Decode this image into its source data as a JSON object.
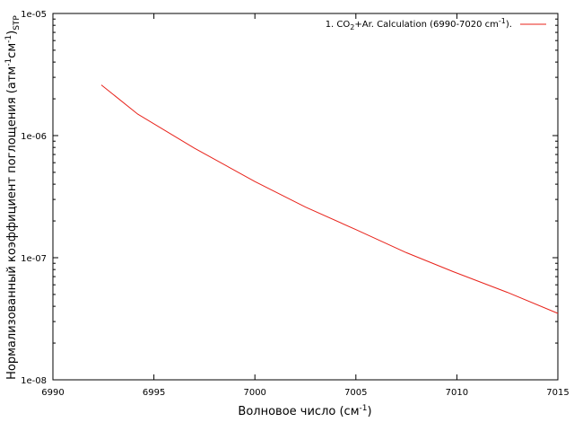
{
  "chart_data": {
    "type": "line",
    "xlabel": {
      "main": "Волновое число (см",
      "sup": "-1",
      "close": ")"
    },
    "ylabel": {
      "a": "Нормализованный коэффициент поглощения (атм",
      "sup1": "-1",
      "b": "см",
      "sup2": "-1",
      "c": ")",
      "sub": "STP"
    },
    "xlim": [
      6990,
      7015
    ],
    "ylim": [
      1e-08,
      1e-05
    ],
    "yscale": "log",
    "x_ticks": [
      {
        "value": 6990,
        "label": "6990"
      },
      {
        "value": 6995,
        "label": "6995"
      },
      {
        "value": 7000,
        "label": "7000"
      },
      {
        "value": 7005,
        "label": "7005"
      },
      {
        "value": 7010,
        "label": "7010"
      },
      {
        "value": 7015,
        "label": "7015"
      }
    ],
    "y_ticks": [
      {
        "value": 1e-08,
        "label": "1e-08"
      },
      {
        "value": 1e-07,
        "label": "1e-07"
      },
      {
        "value": 1e-06,
        "label": "1e-06"
      },
      {
        "value": 1e-05,
        "label": "1e-05"
      }
    ],
    "grid": false,
    "legend_position": "top-right",
    "series": [
      {
        "name": "1. CO2+Ar. Calculation (6990-7020 cm-1).",
        "legend": {
          "a": "1. CO",
          "sub": "2",
          "b": "+Ar. Calculation (6990-7020 cm",
          "sup": "-1",
          "c": ")."
        },
        "color": "#e8221a",
        "x": [
          6992.4,
          6994.2,
          6997.0,
          7000.0,
          7002.5,
          7005.0,
          7007.5,
          7009.8,
          7012.5,
          7015.0
        ],
        "y": [
          2.6e-06,
          1.5e-06,
          7.9e-07,
          4.2e-07,
          2.6e-07,
          1.7e-07,
          1.1e-07,
          7.7e-08,
          5.2e-08,
          3.5e-08
        ]
      }
    ]
  }
}
